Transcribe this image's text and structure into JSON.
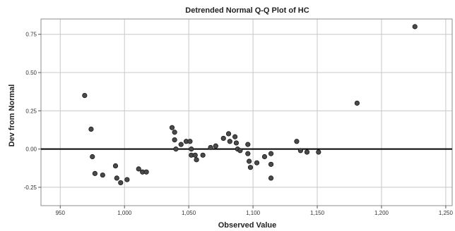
{
  "chart_data": {
    "type": "scatter",
    "title": "Detrended Normal Q-Q Plot of HC",
    "xlabel": "Observed Value",
    "ylabel": "Dev from Normal",
    "xlim": [
      935,
      1255
    ],
    "ylim": [
      -0.37,
      0.85
    ],
    "x_ticks": [
      950,
      1000,
      1050,
      1100,
      1150,
      1200,
      1250
    ],
    "x_tick_labels": [
      "950",
      "1,000",
      "1,050",
      "1,100",
      "1,150",
      "1,200",
      "1,250"
    ],
    "y_ticks": [
      -0.25,
      0,
      0.25,
      0.5,
      0.75
    ],
    "y_tick_labels": [
      "-0.25",
      "0.00",
      "0.25",
      "0.50",
      "0.75"
    ],
    "grid": true,
    "reference_line": 0,
    "colors": {
      "point_fill": "#4a4a4a",
      "point_stroke": "#1a1a1a",
      "grid": "#c8c8c8",
      "reference": "#000000"
    },
    "points": [
      {
        "x": 969,
        "y": 0.35
      },
      {
        "x": 974,
        "y": 0.13
      },
      {
        "x": 975,
        "y": -0.05
      },
      {
        "x": 977,
        "y": -0.16
      },
      {
        "x": 983,
        "y": -0.17
      },
      {
        "x": 993,
        "y": -0.11
      },
      {
        "x": 994,
        "y": -0.19
      },
      {
        "x": 997,
        "y": -0.22
      },
      {
        "x": 1002,
        "y": -0.2
      },
      {
        "x": 1011,
        "y": -0.13
      },
      {
        "x": 1014,
        "y": -0.15
      },
      {
        "x": 1017,
        "y": -0.15
      },
      {
        "x": 1037,
        "y": 0.14
      },
      {
        "x": 1039,
        "y": 0.11
      },
      {
        "x": 1039,
        "y": 0.06
      },
      {
        "x": 1040,
        "y": 0.0
      },
      {
        "x": 1044,
        "y": 0.03
      },
      {
        "x": 1048,
        "y": 0.05
      },
      {
        "x": 1051,
        "y": 0.05
      },
      {
        "x": 1052,
        "y": 0.0
      },
      {
        "x": 1052,
        "y": -0.04
      },
      {
        "x": 1055,
        "y": -0.04
      },
      {
        "x": 1056,
        "y": -0.07
      },
      {
        "x": 1061,
        "y": -0.04
      },
      {
        "x": 1067,
        "y": 0.01
      },
      {
        "x": 1071,
        "y": 0.02
      },
      {
        "x": 1077,
        "y": 0.07
      },
      {
        "x": 1081,
        "y": 0.1
      },
      {
        "x": 1082,
        "y": 0.05
      },
      {
        "x": 1086,
        "y": 0.08
      },
      {
        "x": 1087,
        "y": 0.04
      },
      {
        "x": 1088,
        "y": 0.0
      },
      {
        "x": 1090,
        "y": -0.01
      },
      {
        "x": 1096,
        "y": 0.03
      },
      {
        "x": 1096,
        "y": -0.03
      },
      {
        "x": 1097,
        "y": -0.08
      },
      {
        "x": 1098,
        "y": -0.12
      },
      {
        "x": 1103,
        "y": -0.09
      },
      {
        "x": 1109,
        "y": -0.05
      },
      {
        "x": 1114,
        "y": -0.03
      },
      {
        "x": 1114,
        "y": -0.1
      },
      {
        "x": 1114,
        "y": -0.19
      },
      {
        "x": 1134,
        "y": 0.05
      },
      {
        "x": 1137,
        "y": -0.01
      },
      {
        "x": 1142,
        "y": -0.02
      },
      {
        "x": 1151,
        "y": -0.02
      },
      {
        "x": 1181,
        "y": 0.3
      },
      {
        "x": 1226,
        "y": 0.8
      }
    ]
  }
}
